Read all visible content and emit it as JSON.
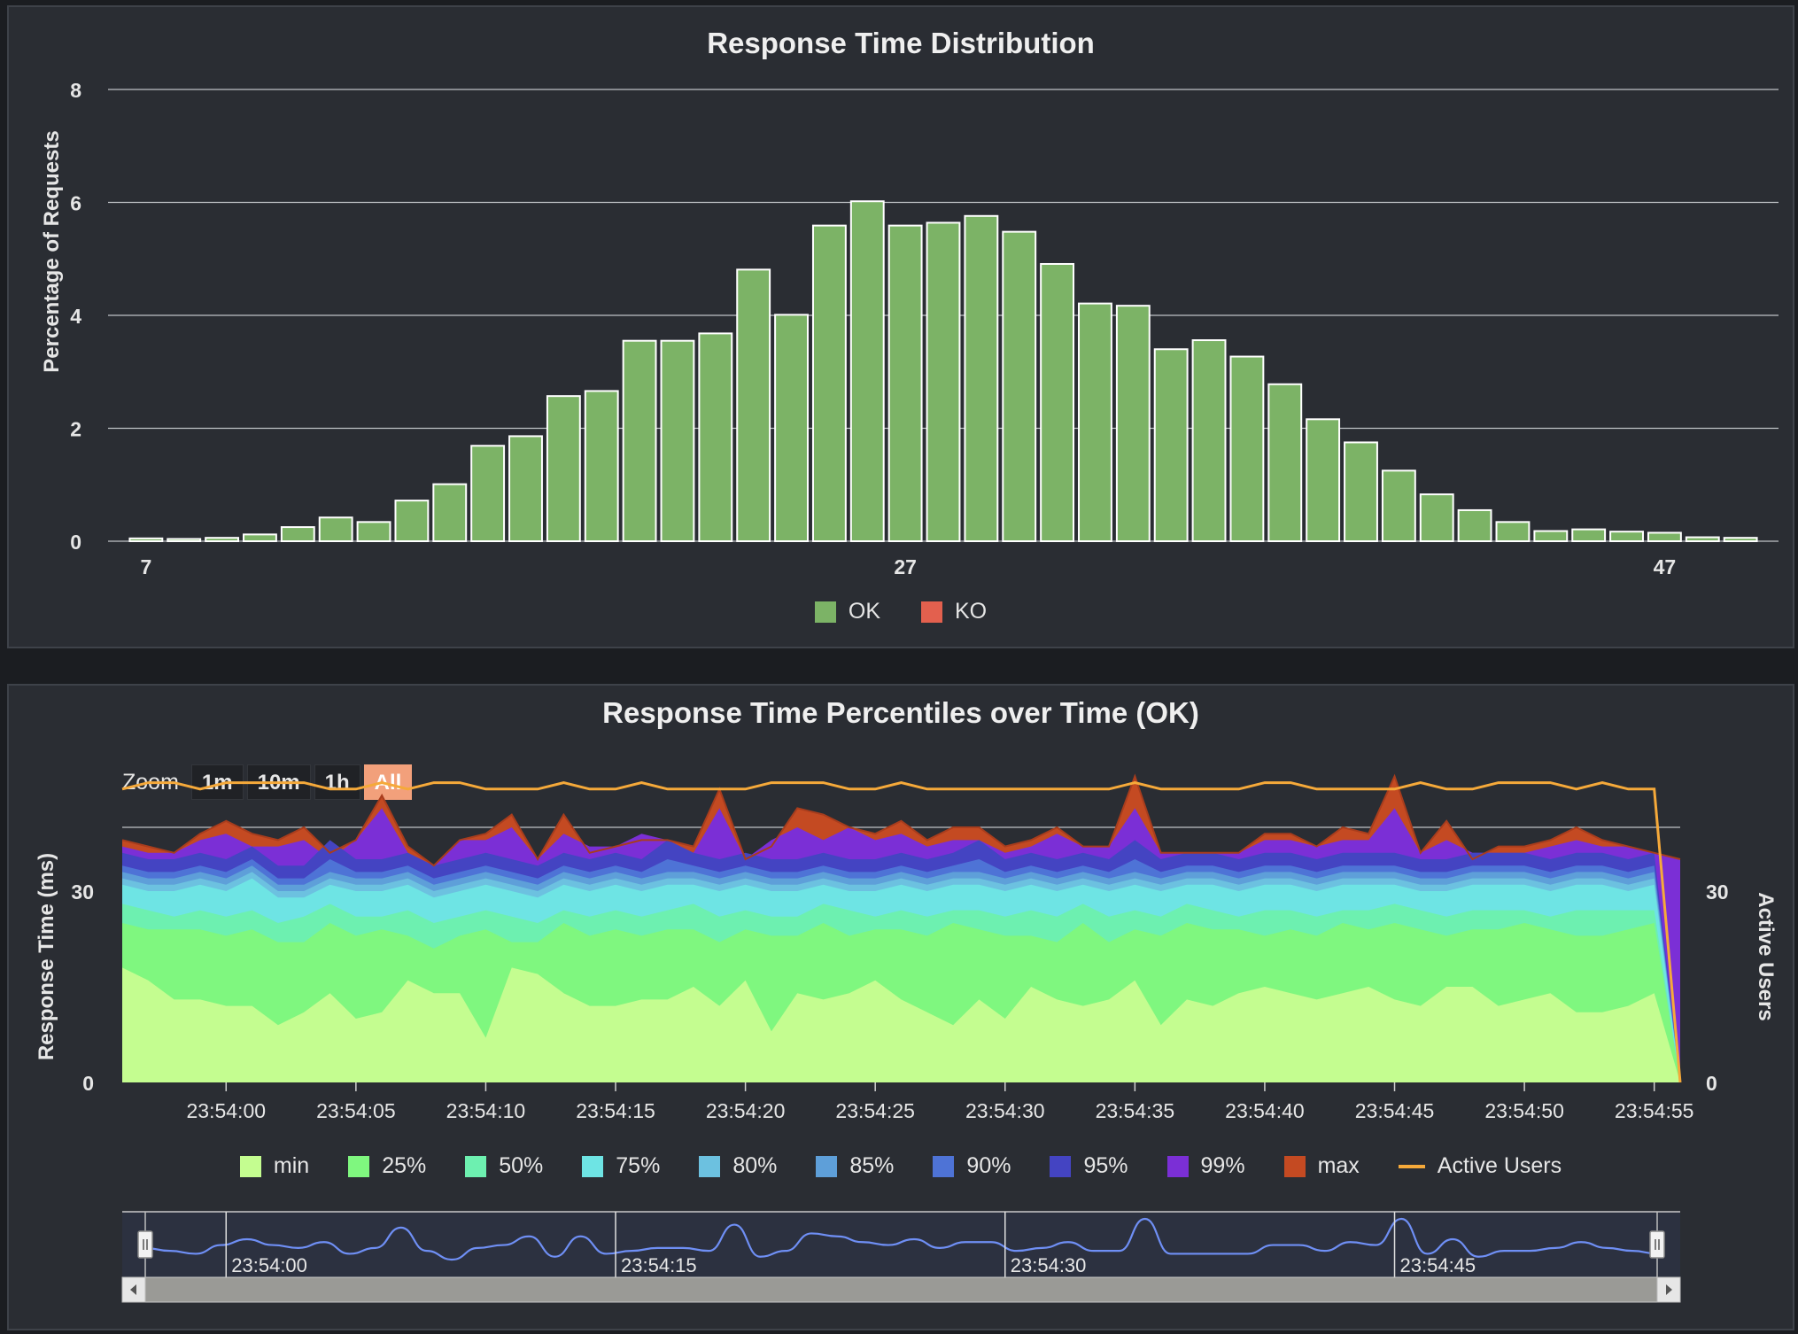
{
  "chart_data": [
    {
      "type": "bar",
      "title": "Response Time Distribution",
      "ylabel": "Percentage of Requests",
      "xlabel": "",
      "x_range": [
        6,
        50
      ],
      "x_ticks": [
        7,
        27,
        47
      ],
      "ylim": [
        0,
        8
      ],
      "y_ticks": [
        0,
        2,
        4,
        6,
        8
      ],
      "grid": true,
      "legend_position": "bottom-center",
      "series": [
        {
          "name": "OK",
          "color": "#7cb366",
          "x": [
            7,
            8,
            9,
            10,
            11,
            12,
            13,
            14,
            15,
            16,
            17,
            18,
            19,
            20,
            21,
            22,
            23,
            24,
            25,
            26,
            27,
            28,
            29,
            30,
            31,
            32,
            33,
            34,
            35,
            36,
            37,
            38,
            39,
            40,
            41,
            42,
            43,
            44,
            45,
            46,
            47,
            48,
            49
          ],
          "values": [
            0.05,
            0.04,
            0.06,
            0.12,
            0.25,
            0.42,
            0.34,
            0.72,
            1.01,
            1.69,
            1.86,
            2.57,
            2.66,
            3.55,
            3.55,
            3.68,
            4.81,
            4.01,
            5.59,
            6.02,
            5.59,
            5.64,
            5.76,
            5.48,
            4.91,
            4.21,
            4.17,
            3.4,
            3.56,
            3.27,
            2.78,
            2.16,
            1.75,
            1.25,
            0.83,
            0.55,
            0.34,
            0.18,
            0.21,
            0.17,
            0.15,
            0.07,
            0.06
          ]
        },
        {
          "name": "KO",
          "color": "#e3604e",
          "x": [],
          "values": []
        }
      ]
    },
    {
      "type": "area",
      "title": "Response Time Percentiles over Time (OK)",
      "ylabel": "Response Time (ms)",
      "y2label": "Active Users",
      "x_start": "23:53:56",
      "x_end": "23:54:56",
      "x_step_seconds": 1,
      "x_ticks": [
        "23:54:00",
        "23:54:05",
        "23:54:10",
        "23:54:15",
        "23:54:20",
        "23:54:25",
        "23:54:30",
        "23:54:35",
        "23:54:40",
        "23:54:45",
        "23:54:50",
        "23:54:55"
      ],
      "ylim": [
        0,
        40
      ],
      "y_ticks": [
        0,
        30
      ],
      "y2lim": [
        0,
        40
      ],
      "y2_ticks": [
        0,
        30
      ],
      "legend_position": "bottom-center",
      "series": [
        {
          "name": "min",
          "color": "#c4fd90",
          "values": [
            18,
            16,
            13,
            13,
            12,
            12,
            9,
            11,
            14,
            10,
            11,
            16,
            14,
            14,
            7,
            18,
            17,
            14,
            12,
            12,
            13,
            13,
            15,
            12,
            16,
            8,
            14,
            13,
            14,
            16,
            13,
            11,
            9,
            13,
            10,
            15,
            13,
            12,
            13,
            16,
            9,
            13,
            12,
            14,
            15,
            14,
            13,
            14,
            15,
            13,
            12,
            15,
            15,
            12,
            13,
            14,
            11,
            11,
            12,
            14,
            0
          ]
        },
        {
          "name": "25%",
          "color": "#7ff77f",
          "values": [
            25,
            24,
            24,
            24,
            23,
            24,
            22,
            22,
            25,
            23,
            24,
            23,
            21,
            23,
            24,
            22,
            22,
            25,
            23,
            24,
            23,
            24,
            24,
            22,
            24,
            23,
            23,
            25,
            23,
            24,
            24,
            23,
            25,
            24,
            23,
            23,
            22,
            25,
            22,
            24,
            23,
            25,
            24,
            24,
            23,
            24,
            23,
            25,
            24,
            25,
            24,
            23,
            24,
            24,
            25,
            24,
            23,
            23,
            24,
            25,
            0
          ]
        },
        {
          "name": "50%",
          "color": "#6df0b0",
          "values": [
            28,
            27,
            26,
            27,
            26,
            27,
            25,
            26,
            28,
            26,
            26,
            27,
            25,
            26,
            27,
            26,
            25,
            27,
            26,
            27,
            26,
            27,
            28,
            26,
            27,
            26,
            26,
            28,
            27,
            26,
            27,
            26,
            27,
            27,
            26,
            27,
            26,
            28,
            26,
            27,
            26,
            28,
            27,
            26,
            27,
            27,
            26,
            27,
            27,
            28,
            27,
            26,
            27,
            27,
            27,
            26,
            27,
            27,
            27,
            27,
            0
          ]
        },
        {
          "name": "75%",
          "color": "#6ee4e4",
          "values": [
            31,
            30,
            30,
            31,
            30,
            32,
            29,
            29,
            31,
            30,
            30,
            31,
            29,
            30,
            31,
            30,
            29,
            31,
            30,
            31,
            30,
            31,
            31,
            30,
            31,
            30,
            30,
            31,
            30,
            30,
            31,
            30,
            31,
            31,
            30,
            31,
            30,
            31,
            30,
            31,
            30,
            31,
            31,
            30,
            31,
            31,
            30,
            31,
            31,
            31,
            30,
            30,
            31,
            31,
            31,
            30,
            31,
            31,
            30,
            31,
            0
          ]
        },
        {
          "name": "80%",
          "color": "#6cc1e0",
          "values": [
            32,
            31,
            31,
            32,
            31,
            33,
            30,
            30,
            32,
            31,
            31,
            32,
            30,
            31,
            32,
            31,
            30,
            32,
            31,
            32,
            31,
            32,
            32,
            31,
            32,
            31,
            31,
            32,
            31,
            31,
            32,
            31,
            32,
            32,
            31,
            32,
            31,
            32,
            31,
            32,
            31,
            32,
            32,
            31,
            32,
            32,
            31,
            32,
            32,
            32,
            31,
            31,
            32,
            32,
            32,
            31,
            32,
            32,
            31,
            32,
            0
          ]
        },
        {
          "name": "85%",
          "color": "#5e9fd9",
          "values": [
            33,
            32,
            32,
            33,
            32,
            34,
            31,
            31,
            33,
            32,
            32,
            33,
            31,
            32,
            33,
            32,
            31,
            33,
            32,
            33,
            32,
            33,
            33,
            32,
            33,
            32,
            32,
            33,
            32,
            32,
            33,
            32,
            33,
            33,
            32,
            33,
            32,
            33,
            32,
            33,
            32,
            33,
            33,
            32,
            33,
            33,
            32,
            33,
            33,
            33,
            32,
            32,
            33,
            33,
            33,
            32,
            33,
            33,
            32,
            33,
            0
          ]
        },
        {
          "name": "90%",
          "color": "#4e73d6",
          "values": [
            34,
            33,
            33,
            34,
            33,
            35,
            32,
            32,
            35,
            33,
            33,
            34,
            32,
            33,
            34,
            33,
            32,
            34,
            33,
            34,
            33,
            35,
            34,
            33,
            34,
            33,
            33,
            34,
            33,
            33,
            34,
            33,
            34,
            35,
            33,
            34,
            33,
            34,
            33,
            35,
            33,
            34,
            34,
            33,
            34,
            34,
            33,
            34,
            34,
            34,
            33,
            33,
            34,
            34,
            34,
            33,
            34,
            34,
            33,
            34,
            0
          ]
        },
        {
          "name": "95%",
          "color": "#4444c2",
          "values": [
            36,
            35,
            35,
            36,
            35,
            37,
            34,
            34,
            38,
            35,
            35,
            36,
            34,
            35,
            36,
            35,
            34,
            36,
            35,
            36,
            35,
            38,
            36,
            35,
            36,
            35,
            35,
            36,
            35,
            35,
            36,
            35,
            36,
            38,
            35,
            36,
            35,
            36,
            35,
            38,
            35,
            36,
            36,
            35,
            36,
            36,
            35,
            36,
            36,
            36,
            35,
            35,
            36,
            36,
            36,
            35,
            36,
            36,
            35,
            36,
            0
          ]
        },
        {
          "name": "99%",
          "color": "#7b2fd6",
          "values": [
            37,
            36,
            36,
            38,
            39,
            37,
            37,
            38,
            35,
            38,
            43,
            36,
            34,
            38,
            38,
            40,
            35,
            39,
            37,
            37,
            39,
            38,
            36,
            43,
            35,
            38,
            40,
            38,
            40,
            38,
            39,
            37,
            38,
            38,
            36,
            37,
            39,
            37,
            37,
            43,
            36,
            36,
            36,
            36,
            38,
            38,
            37,
            38,
            38,
            43,
            36,
            38,
            36,
            36,
            36,
            37,
            38,
            37,
            37,
            36,
            35
          ]
        },
        {
          "name": "max",
          "color": "#c44a22",
          "values": [
            38,
            37,
            36,
            39,
            41,
            39,
            38,
            40,
            36,
            38,
            45,
            37,
            34,
            38,
            39,
            42,
            35,
            42,
            36,
            37,
            38,
            38,
            37,
            46,
            35,
            37,
            43,
            42,
            40,
            39,
            41,
            38,
            40,
            40,
            37,
            38,
            40,
            37,
            37,
            48,
            36,
            36,
            36,
            36,
            39,
            39,
            37,
            40,
            39,
            48,
            36,
            41,
            35,
            37,
            37,
            38,
            40,
            38,
            37,
            36,
            35
          ]
        },
        {
          "name": "Active Users",
          "color": "#f5a93a",
          "axis": "y2",
          "values": [
            46,
            47,
            47,
            46,
            47,
            47,
            47,
            47,
            46,
            46,
            47,
            46,
            47,
            47,
            46,
            46,
            46,
            47,
            46,
            46,
            47,
            46,
            46,
            46,
            46,
            47,
            47,
            47,
            46,
            46,
            47,
            46,
            46,
            46,
            46,
            46,
            46,
            46,
            46,
            47,
            46,
            46,
            46,
            46,
            47,
            47,
            46,
            46,
            46,
            46,
            47,
            46,
            46,
            47,
            47,
            47,
            46,
            47,
            46,
            46,
            0
          ]
        }
      ]
    }
  ],
  "navigator": {
    "labels": [
      "23:54:00",
      "23:54:15",
      "23:54:30",
      "23:54:45"
    ]
  },
  "zoom": {
    "label": "Zoom",
    "buttons": [
      "1m",
      "10m",
      "1h",
      "All"
    ],
    "selected": "All"
  }
}
